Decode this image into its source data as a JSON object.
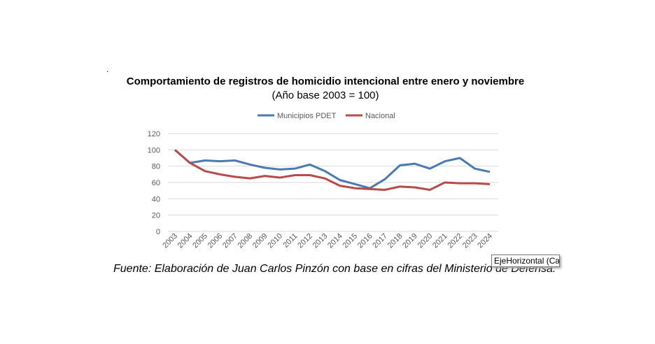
{
  "chart_data": {
    "type": "line",
    "title": "Comportamiento de registros de homicidio intencional entre enero y noviembre",
    "subtitle": "(Año base 2003 = 100)",
    "categories": [
      "2003",
      "2004",
      "2005",
      "2006",
      "2007",
      "2008",
      "2009",
      "2010",
      "2011",
      "2012",
      "2013",
      "2014",
      "2015",
      "2016",
      "2017",
      "2018",
      "2019",
      "2020",
      "2021",
      "2022",
      "2023",
      "2024"
    ],
    "series": [
      {
        "name": "Municipios PDET",
        "color": "#4a7ab0",
        "values": [
          100,
          84,
          87,
          86,
          87,
          82,
          78,
          76,
          77,
          82,
          74,
          63,
          58,
          53,
          64,
          81,
          83,
          77,
          86,
          90,
          77,
          73
        ]
      },
      {
        "name": "Nacional",
        "color": "#b84a4a",
        "values": [
          100,
          84,
          74,
          70,
          67,
          65,
          68,
          66,
          69,
          69,
          65,
          56,
          53,
          52,
          51,
          55,
          54,
          51,
          60,
          59,
          59,
          58
        ]
      }
    ],
    "yticks": [
      "0",
      "20",
      "40",
      "60",
      "80",
      "100",
      "120"
    ],
    "ylim": [
      0,
      120
    ],
    "grid": true,
    "legend": "top"
  },
  "dot": ".",
  "source": "Fuente: Elaboración de Juan Carlos Pinzón con base en cifras del Ministerio de Defensa.",
  "tooltip": "EjeHorizontal (Categoría)"
}
